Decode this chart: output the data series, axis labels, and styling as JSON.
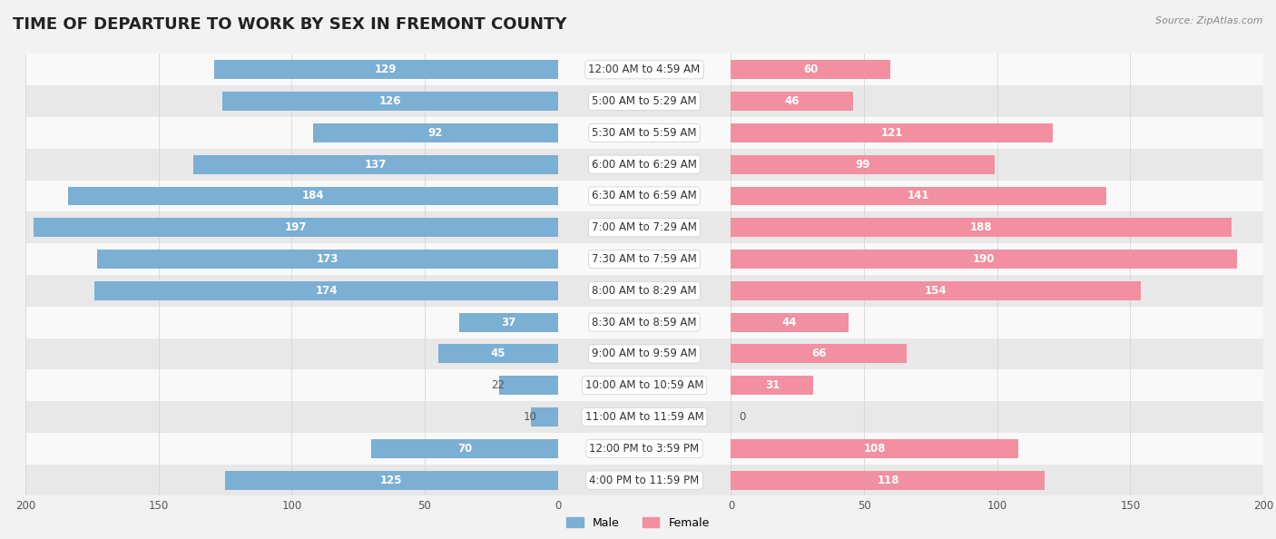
{
  "title": "TIME OF DEPARTURE TO WORK BY SEX IN FREMONT COUNTY",
  "source": "Source: ZipAtlas.com",
  "categories": [
    "12:00 AM to 4:59 AM",
    "5:00 AM to 5:29 AM",
    "5:30 AM to 5:59 AM",
    "6:00 AM to 6:29 AM",
    "6:30 AM to 6:59 AM",
    "7:00 AM to 7:29 AM",
    "7:30 AM to 7:59 AM",
    "8:00 AM to 8:29 AM",
    "8:30 AM to 8:59 AM",
    "9:00 AM to 9:59 AM",
    "10:00 AM to 10:59 AM",
    "11:00 AM to 11:59 AM",
    "12:00 PM to 3:59 PM",
    "4:00 PM to 11:59 PM"
  ],
  "male_values": [
    129,
    126,
    92,
    137,
    184,
    197,
    173,
    174,
    37,
    45,
    22,
    10,
    70,
    125
  ],
  "female_values": [
    60,
    46,
    121,
    99,
    141,
    188,
    190,
    154,
    44,
    66,
    31,
    0,
    108,
    118
  ],
  "male_color": "#7bafd4",
  "female_color": "#f28fa0",
  "male_label_color_inside": "#ffffff",
  "male_label_color_outside": "#555555",
  "female_label_color_inside": "#ffffff",
  "female_label_color_outside": "#555555",
  "background_color": "#f2f2f2",
  "row_color_light": "#f9f9f9",
  "row_color_dark": "#e8e8e8",
  "xlim": 200,
  "bar_height": 0.6,
  "title_fontsize": 13,
  "label_fontsize": 8.5,
  "tick_fontsize": 8.5,
  "category_fontsize": 8.5,
  "inside_label_threshold": 25
}
